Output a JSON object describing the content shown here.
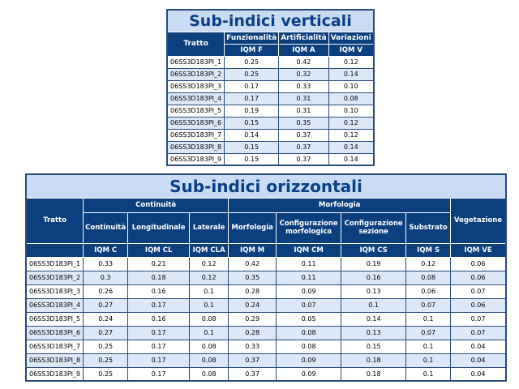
{
  "vertical": {
    "title": "Sub-indici verticali",
    "headers": [
      "Tratto",
      "Funzionalità",
      "Artificialità",
      "Variazioni"
    ],
    "codes": [
      "IQM F",
      "IQM A",
      "IQM V"
    ],
    "rows": [
      [
        "06SS3D183PI_1",
        "0.25",
        "0.42",
        "0.12"
      ],
      [
        "06SS3D183PI_2",
        "0.25",
        "0.32",
        "0.14"
      ],
      [
        "06SS3D183PI_3",
        "0.17",
        "0.33",
        "0.10"
      ],
      [
        "06SS3D183PI_4",
        "0.17",
        "0.31",
        "0.08"
      ],
      [
        "06SS3D183PI_5",
        "0.19",
        "0.31",
        "0.10"
      ],
      [
        "06SS3D183PI_6",
        "0.15",
        "0.35",
        "0.12"
      ],
      [
        "06SS3D183PI_7",
        "0.14",
        "0.37",
        "0.12"
      ],
      [
        "06SS3D183PI_8",
        "0.15",
        "0.37",
        "0.14"
      ],
      [
        "06SS3D183PI_9",
        "0.15",
        "0.37",
        "0.14"
      ]
    ]
  },
  "horizontal": {
    "title": "Sub-indici orizzontali",
    "tratto_label": "Tratto",
    "group_continuita": "Continuità",
    "group_morfologia": "Morfologia",
    "vegetazione": "Vegetazione",
    "subheaders": [
      "Continuità",
      "Longitudinale",
      "Laterale",
      "Morfologia",
      "Configurazione morfologica",
      "Configurazione sezione",
      "Substrato"
    ],
    "codes": [
      "IQM C",
      "IQM CL",
      "IQM CLA",
      "IQM M",
      "IQM CM",
      "IQM CS",
      "IQM S",
      "IQM VE"
    ],
    "rows": [
      [
        "06SS3D183PI_1",
        "0.33",
        "0.21",
        "0.12",
        "0.42",
        "0.11",
        "0.19",
        "0.12",
        "0.06"
      ],
      [
        "06SS3D183PI_2",
        "0.3",
        "0.18",
        "0.12",
        "0.35",
        "0.11",
        "0.16",
        "0.08",
        "0.06"
      ],
      [
        "06SS3D183PI_3",
        "0.26",
        "0.16",
        "0.1",
        "0.28",
        "0.09",
        "0.13",
        "0.06",
        "0.07"
      ],
      [
        "06SS3D183PI_4",
        "0.27",
        "0.17",
        "0.1",
        "0.24",
        "0.07",
        "0.1",
        "0.07",
        "0.06"
      ],
      [
        "06SS3D183PI_5",
        "0.24",
        "0.16",
        "0.08",
        "0.29",
        "0.05",
        "0.14",
        "0.1",
        "0.07"
      ],
      [
        "06SS3D183PI_6",
        "0.27",
        "0.17",
        "0.1",
        "0.28",
        "0.08",
        "0.13",
        "0.07",
        "0.07"
      ],
      [
        "06SS3D183PI_7",
        "0.25",
        "0.17",
        "0.08",
        "0.33",
        "0.08",
        "0.15",
        "0.1",
        "0.04"
      ],
      [
        "06SS3D183PI_8",
        "0.25",
        "0.17",
        "0.08",
        "0.37",
        "0.09",
        "0.18",
        "0.1",
        "0.04"
      ],
      [
        "06SS3D183PI_9",
        "0.25",
        "0.17",
        "0.08",
        "0.37",
        "0.09",
        "0.18",
        "0.1",
        "0.04"
      ]
    ]
  }
}
